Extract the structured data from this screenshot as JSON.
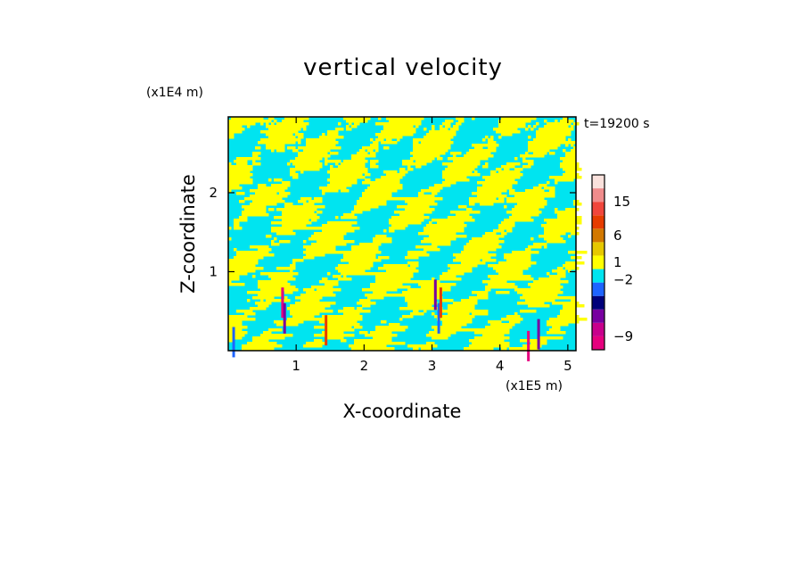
{
  "chart_data": {
    "type": "heatmap",
    "title": "vertical velocity",
    "xlabel": "X-coordinate",
    "ylabel": "Z-coordinate",
    "x_unit": "(x1E5 m)",
    "y_unit": "(x1E4 m)",
    "time_label": "t=19200 s",
    "xlim": [
      0,
      5.12
    ],
    "ylim": [
      0,
      2.96
    ],
    "xticks": [
      1,
      2,
      3,
      4,
      5
    ],
    "xtick_labels": [
      "1",
      "2",
      "3",
      "4",
      "5"
    ],
    "yticks": [
      1,
      2
    ],
    "ytick_labels": [
      "1",
      "2"
    ],
    "colorbar": {
      "levels": [
        {
          "color": "#e6007e"
        },
        {
          "color": "#c8008c"
        },
        {
          "color": "#7800a0"
        },
        {
          "color": "#00007a"
        },
        {
          "color": "#1e64ff"
        },
        {
          "color": "#00e4f0"
        },
        {
          "color": "#ffff00"
        },
        {
          "color": "#e6c800"
        },
        {
          "color": "#d27800"
        },
        {
          "color": "#e63c00"
        },
        {
          "color": "#f0463c"
        },
        {
          "color": "#f08c8c"
        },
        {
          "color": "#fae1dc"
        }
      ],
      "tick_labels": [
        {
          "label": "15",
          "level": 11
        },
        {
          "label": "6",
          "level": 8.5
        },
        {
          "label": "1",
          "level": 6.5
        },
        {
          "label": "−2",
          "level": 5.2
        },
        {
          "label": "−9",
          "level": 1
        }
      ]
    },
    "field_description_colors": {
      "negative_weak": "#00e4f0",
      "positive_weak": "#ffff00"
    }
  }
}
